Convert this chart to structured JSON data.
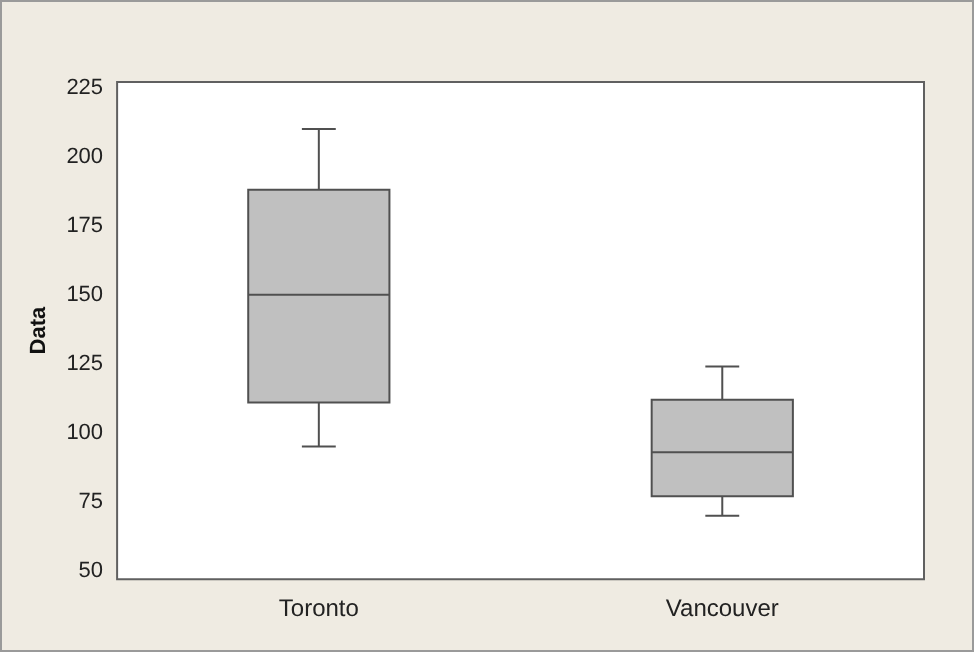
{
  "chart_data": {
    "type": "box",
    "ylabel": "Data",
    "categories": [
      "Toronto",
      "Vancouver"
    ],
    "boxes": [
      {
        "low": 95,
        "q1": 111,
        "median": 150,
        "q3": 188,
        "high": 210
      },
      {
        "low": 70,
        "q1": 77,
        "median": 93,
        "q3": 112,
        "high": 124
      }
    ],
    "color": "#c0c0c0",
    "ylim": [
      47,
      227
    ],
    "yticks": [
      50,
      75,
      100,
      125,
      150,
      175,
      200,
      225
    ]
  }
}
